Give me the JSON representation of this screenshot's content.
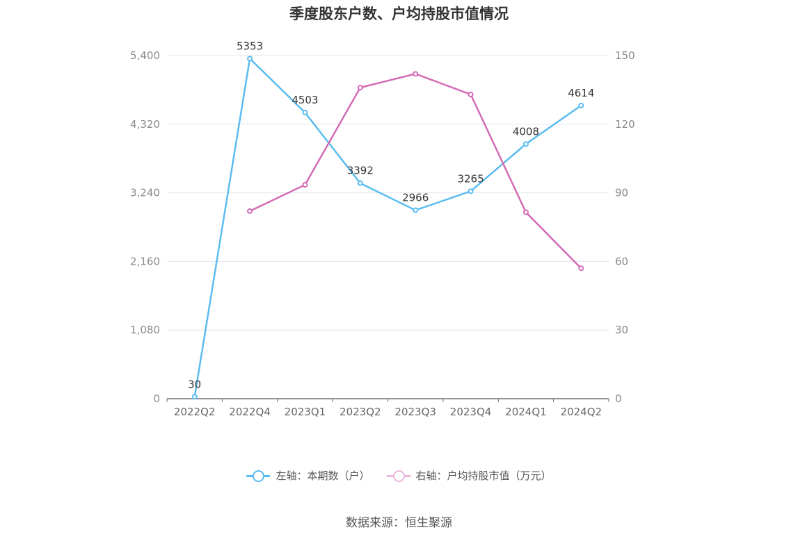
{
  "chart_data": {
    "type": "line",
    "title": "季度股东户数、户均持股市值情况",
    "categories": [
      "2022Q2",
      "2022Q4",
      "2023Q1",
      "2023Q2",
      "2023Q3",
      "2023Q4",
      "2024Q1",
      "2024Q2"
    ],
    "left_axis": {
      "ticks": [
        "0",
        "1,080",
        "2,160",
        "3,240",
        "4,320",
        "5,400"
      ],
      "range": [
        0,
        5400
      ]
    },
    "right_axis": {
      "ticks": [
        "0",
        "30",
        "60",
        "90",
        "120",
        "150"
      ],
      "range": [
        0,
        150
      ]
    },
    "series": [
      {
        "name": "左轴：本期数（户）",
        "axis": "left",
        "color": "#5bbcf0",
        "values": [
          30,
          5353,
          4503,
          3392,
          2966,
          3265,
          4008,
          4614
        ],
        "labels": [
          "30",
          "5353",
          "4503",
          "3392",
          "2966",
          "3265",
          "4008",
          "4614"
        ]
      },
      {
        "name": "右轴：户均持股市值（万元）",
        "axis": "right",
        "color": "#d36bb5",
        "values": [
          null,
          82,
          93.5,
          136,
          142,
          133,
          81.5,
          57
        ]
      }
    ],
    "grid": true,
    "legend_position": "bottom"
  },
  "source": "数据来源：恒生聚源"
}
